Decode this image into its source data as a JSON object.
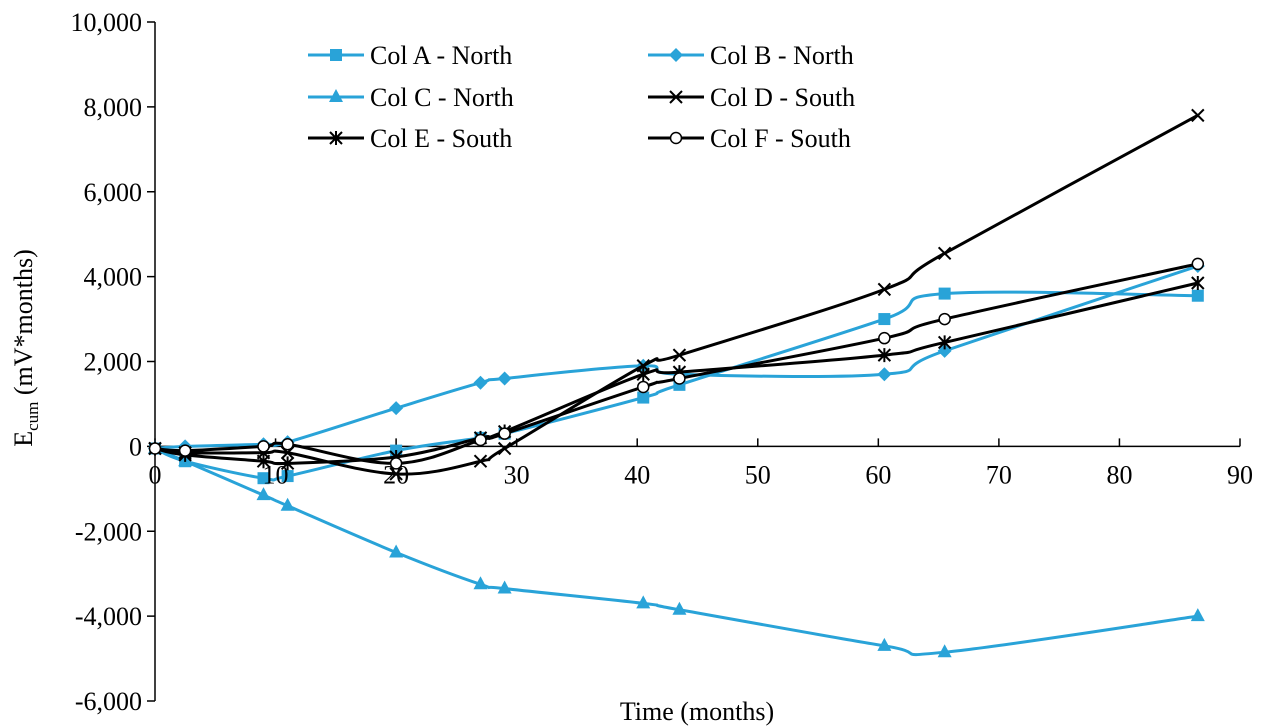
{
  "chart_data": {
    "type": "line",
    "title": "",
    "xlabel": "Time (months)",
    "ylabel": {
      "base": "E",
      "sub": "cum",
      "rest": " (mV*months)"
    },
    "xlim": [
      0,
      90
    ],
    "ylim": [
      -6000,
      10000
    ],
    "xticks": [
      0,
      10,
      20,
      30,
      40,
      50,
      60,
      70,
      80,
      90
    ],
    "yticks": [
      -6000,
      -4000,
      -2000,
      0,
      2000,
      4000,
      6000,
      8000,
      10000
    ],
    "xtick_labels": [
      "0",
      "10",
      "20",
      "30",
      "40",
      "50",
      "60",
      "70",
      "80",
      "90"
    ],
    "ytick_labels": [
      "-6,000",
      "-4,000",
      "-2,000",
      "0",
      "2,000",
      "4,000",
      "6,000",
      "8,000",
      "10,000"
    ],
    "grid": false,
    "legend_position": "top-center",
    "series": [
      {
        "name": "Col A - North",
        "color": "#29A3D8",
        "marker": "square",
        "x": [
          0,
          2.5,
          9,
          11,
          20,
          27,
          29,
          40.5,
          43.5,
          60.5,
          65.5,
          86.5
        ],
        "y": [
          -50,
          -350,
          -750,
          -700,
          -100,
          200,
          300,
          1150,
          1450,
          3000,
          3600,
          3550
        ]
      },
      {
        "name": "Col B - North",
        "color": "#29A3D8",
        "marker": "diamond",
        "x": [
          0,
          2.5,
          9,
          11,
          20,
          27,
          29,
          40.5,
          43.5,
          60.5,
          65.5,
          86.5
        ],
        "y": [
          -50,
          0,
          50,
          100,
          900,
          1500,
          1600,
          1900,
          1700,
          1700,
          2250,
          4250
        ]
      },
      {
        "name": "Col C - North",
        "color": "#29A3D8",
        "marker": "triangle",
        "x": [
          0,
          2.5,
          9,
          11,
          20,
          27,
          29,
          40.5,
          43.5,
          60.5,
          65.5,
          86.5
        ],
        "y": [
          -50,
          -350,
          -1150,
          -1400,
          -2500,
          -3250,
          -3350,
          -3700,
          -3850,
          -4700,
          -4850,
          -4000
        ]
      },
      {
        "name": "Col D - South",
        "color": "#000000",
        "marker": "x",
        "x": [
          0,
          2.5,
          9,
          11,
          20,
          27,
          29,
          40.5,
          43.5,
          60.5,
          65.5,
          86.5
        ],
        "y": [
          -50,
          -150,
          -150,
          -150,
          -650,
          -350,
          -50,
          1900,
          2150,
          3700,
          4550,
          7800
        ]
      },
      {
        "name": "Col E - South",
        "color": "#000000",
        "marker": "star",
        "x": [
          0,
          2.5,
          9,
          11,
          20,
          27,
          29,
          40.5,
          43.5,
          60.5,
          65.5,
          86.5
        ],
        "y": [
          -50,
          -200,
          -350,
          -400,
          -250,
          200,
          350,
          1700,
          1750,
          2150,
          2450,
          3850
        ]
      },
      {
        "name": "Col F - South",
        "color": "#000000",
        "marker": "circle",
        "x": [
          0,
          2.5,
          9,
          11,
          20,
          27,
          29,
          40.5,
          43.5,
          60.5,
          65.5,
          86.5
        ],
        "y": [
          -50,
          -100,
          0,
          50,
          -400,
          150,
          300,
          1400,
          1600,
          2550,
          3000,
          4300
        ]
      }
    ]
  }
}
